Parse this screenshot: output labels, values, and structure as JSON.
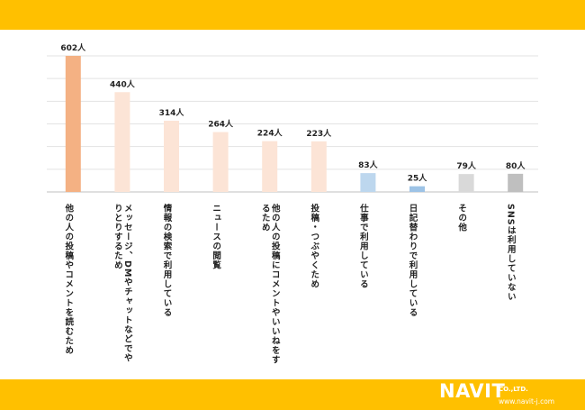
{
  "header": {
    "bg": "#FFC000"
  },
  "footer": {
    "bg": "#FFC000",
    "logo_text": "NAVIT",
    "logo_company": "CO.,LTD.",
    "logo_url": "www.navit-j.com"
  },
  "chart_data": {
    "type": "bar",
    "categories": [
      "他の人の投稿やコメントを読むため",
      "メッセージ、DMやチャットなどでやりとりするため",
      "情報の検索で利用している",
      "ニュースの閲覧",
      "他の人の投稿にコメントやいいねをするため",
      "投稿・つぶやくため",
      "仕事で利用している",
      "日記替わりで利用している",
      "その他",
      "SNSは利用していない"
    ],
    "values": [
      602,
      440,
      314,
      264,
      224,
      223,
      83,
      25,
      79,
      80
    ],
    "value_labels": [
      "602人",
      "440人",
      "314人",
      "264人",
      "224人",
      "223人",
      "83人",
      "25人",
      "79人",
      "80人"
    ],
    "colors": [
      "#F4B183",
      "#FCE4D6",
      "#FCE4D6",
      "#FCE4D6",
      "#FCE4D6",
      "#FCE4D6",
      "#BDD7EE",
      "#9DC3E6",
      "#D9D9D9",
      "#BFBFBF"
    ],
    "ylim": [
      0,
      600
    ],
    "grid": true
  }
}
